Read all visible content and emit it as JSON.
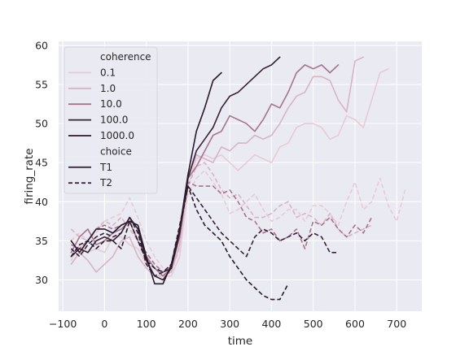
{
  "chart_data": {
    "type": "line",
    "xlabel": "time",
    "ylabel": "firing_rate",
    "xlim": [
      -110,
      760
    ],
    "ylim": [
      26,
      60.5
    ],
    "xticks": [
      -100,
      0,
      100,
      200,
      300,
      400,
      500,
      600,
      700
    ],
    "yticks": [
      30,
      35,
      40,
      45,
      50,
      55,
      60
    ],
    "xtick_labels": [
      "−100",
      "0",
      "100",
      "200",
      "300",
      "400",
      "500",
      "600",
      "700"
    ],
    "ytick_labels": [
      "30",
      "35",
      "40",
      "45",
      "50",
      "55",
      "60"
    ],
    "grid": true,
    "legend": {
      "placement": "top-left",
      "hue_title": "coherence",
      "hue_entries": [
        {
          "label": "0.1",
          "color": "#e6cbd6"
        },
        {
          "label": "1.0",
          "color": "#d8b4c5"
        },
        {
          "label": "10.0",
          "color": "#a7738e"
        },
        {
          "label": "100.0",
          "color": "#382036"
        },
        {
          "label": "1000.0",
          "color": "#2a1a2c"
        }
      ],
      "style_title": "choice",
      "style_entries": [
        {
          "label": "T1",
          "dash": "solid"
        },
        {
          "label": "T2",
          "dash": "dashed"
        }
      ]
    },
    "colors": {
      "background": "#eaeaf2",
      "grid": "#ffffff",
      "text": "#262626"
    },
    "series": [
      {
        "coherence": "0.1",
        "choice": "T1",
        "color": "#e6cbd6",
        "dash": "solid",
        "x": [
          -80,
          -60,
          -40,
          -20,
          0,
          20,
          40,
          60,
          80,
          100,
          120,
          140,
          160,
          180,
          200,
          220,
          240,
          260,
          280,
          300,
          320,
          340,
          360,
          380,
          400,
          420,
          440,
          460,
          480,
          500,
          520,
          540,
          560,
          580,
          600,
          620,
          640,
          660,
          680
        ],
        "y": [
          32.5,
          34.5,
          33.5,
          34,
          33.5,
          35.5,
          35.5,
          34.5,
          34,
          32,
          31.5,
          30.5,
          30.5,
          33,
          42,
          45.5,
          46,
          45.5,
          46,
          45,
          44,
          45,
          46,
          45.5,
          45,
          47,
          47.5,
          49.5,
          50,
          50,
          49.5,
          48,
          48.5,
          51,
          50.5,
          49.5,
          53,
          56.5,
          57
        ]
      },
      {
        "coherence": "0.1",
        "choice": "T2",
        "color": "#e6cbd6",
        "dash": "dashed",
        "x": [
          -80,
          -60,
          -40,
          -20,
          0,
          20,
          40,
          60,
          80,
          100,
          120,
          140,
          160,
          180,
          200,
          220,
          240,
          260,
          280,
          300,
          320,
          340,
          360,
          380,
          400,
          420,
          440,
          460,
          480,
          500,
          520,
          540,
          560,
          580,
          600,
          620,
          640,
          660,
          680,
          700,
          720
        ],
        "y": [
          35,
          36,
          35,
          36,
          37.5,
          38,
          38.5,
          40.5,
          38,
          35,
          33,
          31.5,
          31,
          34,
          41,
          43,
          44,
          42.5,
          41,
          38.5,
          39,
          40,
          41,
          39,
          37.5,
          38,
          39,
          39,
          37.5,
          39.5,
          39.5,
          38.5,
          37,
          40,
          42.5,
          39,
          40,
          43,
          39.5,
          37.5,
          41.5
        ]
      },
      {
        "coherence": "1.0",
        "choice": "T1",
        "color": "#d8b4c5",
        "dash": "solid",
        "x": [
          -80,
          -60,
          -40,
          -20,
          0,
          20,
          40,
          60,
          80,
          100,
          120,
          140,
          160,
          180,
          200,
          220,
          240,
          260,
          280,
          300,
          320,
          340,
          360,
          380,
          400,
          420,
          440,
          460,
          480,
          500,
          520,
          540,
          560,
          580,
          600,
          620
        ],
        "y": [
          32,
          33.5,
          32.5,
          31,
          32,
          33,
          35,
          35.5,
          33,
          31.5,
          30.5,
          30.5,
          31,
          34.5,
          43,
          46,
          45.5,
          45,
          47,
          46.5,
          47.5,
          47.5,
          48.5,
          48,
          48.5,
          50,
          52,
          53.5,
          54,
          56,
          56,
          55.5,
          53,
          51.5,
          58,
          58.5
        ]
      },
      {
        "coherence": "1.0",
        "choice": "T2",
        "color": "#d8b4c5",
        "dash": "dashed",
        "x": [
          -80,
          -60,
          -40,
          -20,
          0,
          20,
          40,
          60,
          80,
          100,
          120,
          140,
          160,
          180,
          200,
          220,
          240,
          260,
          280,
          300,
          320,
          340,
          360,
          380,
          400,
          420,
          440,
          460,
          480,
          500,
          520,
          540,
          560,
          580,
          600,
          620,
          640
        ],
        "y": [
          36.5,
          35.5,
          35,
          36.5,
          37.5,
          37,
          38,
          36.5,
          35,
          33,
          31.5,
          30.5,
          32,
          36.5,
          42,
          44.5,
          45,
          43.5,
          41.5,
          40.5,
          41,
          39.5,
          38,
          38,
          38.5,
          39.5,
          40,
          38,
          38.5,
          38,
          37,
          38.5,
          36.5,
          35.5,
          36,
          36.5,
          37
        ]
      },
      {
        "coherence": "10.0",
        "choice": "T1",
        "color": "#a7738e",
        "dash": "solid",
        "x": [
          -80,
          -60,
          -40,
          -20,
          0,
          20,
          40,
          60,
          80,
          100,
          120,
          140,
          160,
          180,
          200,
          220,
          240,
          260,
          280,
          300,
          320,
          340,
          360,
          380,
          400,
          420,
          440,
          460,
          480,
          500,
          520,
          540,
          560
        ],
        "y": [
          33.5,
          35.5,
          36.5,
          34.5,
          35,
          36,
          36.5,
          37.5,
          35,
          33,
          31.5,
          30.5,
          31.5,
          35.5,
          43,
          44.5,
          46.5,
          48.5,
          49,
          51,
          50.5,
          50,
          49,
          50.5,
          52.5,
          52,
          54,
          56.5,
          57.5,
          57,
          57.5,
          56.5,
          57.5
        ]
      },
      {
        "coherence": "10.0",
        "choice": "T2",
        "color": "#a7738e",
        "dash": "dashed",
        "x": [
          -80,
          -60,
          -40,
          -20,
          0,
          20,
          40,
          60,
          80,
          100,
          120,
          140,
          160,
          180,
          200,
          220,
          240,
          260,
          280,
          300,
          320,
          340,
          360,
          380,
          400,
          420,
          440,
          460,
          480,
          500,
          520,
          540,
          560,
          580,
          600,
          620,
          640
        ],
        "y": [
          34.5,
          34,
          35,
          36.5,
          37,
          36.5,
          37,
          37.5,
          35,
          33.5,
          32,
          31,
          31.5,
          36,
          42.5,
          42,
          42,
          42,
          41,
          41.5,
          40,
          38,
          37.5,
          36,
          36.5,
          35,
          35.5,
          36.5,
          34,
          37.5,
          37,
          38,
          36.5,
          35.5,
          37,
          36,
          38
        ]
      },
      {
        "coherence": "100.0",
        "choice": "T1",
        "color": "#382036",
        "dash": "solid",
        "x": [
          -80,
          -60,
          -40,
          -20,
          0,
          20,
          40,
          60,
          80,
          100,
          120,
          140,
          160,
          180,
          200,
          220,
          240,
          260,
          280,
          300,
          320,
          340,
          360,
          380,
          400,
          420
        ],
        "y": [
          33,
          34,
          33.5,
          35,
          35.5,
          35,
          36,
          38,
          36.5,
          32.5,
          30.5,
          30,
          31.5,
          36,
          43,
          46.5,
          48,
          49.5,
          52,
          53.5,
          54,
          55,
          56,
          57,
          57.5,
          58.5
        ]
      },
      {
        "coherence": "100.0",
        "choice": "T2",
        "color": "#382036",
        "dash": "dashed",
        "x": [
          -80,
          -60,
          -40,
          -20,
          0,
          20,
          40,
          60,
          80,
          100,
          120,
          140,
          160,
          180,
          200,
          220,
          240,
          260,
          280,
          300,
          320,
          340,
          360,
          380,
          400,
          420,
          440,
          460,
          480,
          500,
          520,
          540,
          560
        ],
        "y": [
          34,
          33,
          34.5,
          35.5,
          36,
          35.5,
          36,
          38,
          36,
          32,
          30.5,
          31,
          32,
          37,
          42,
          40.5,
          39,
          37.5,
          36,
          35,
          34,
          33,
          35.5,
          36.5,
          36,
          35,
          35.5,
          36,
          35,
          36,
          35.5,
          33.5,
          33.5
        ]
      },
      {
        "coherence": "1000.0",
        "choice": "T1",
        "color": "#2a1a2c",
        "dash": "solid",
        "x": [
          -80,
          -60,
          -40,
          -20,
          0,
          20,
          40,
          60,
          80,
          100,
          120,
          140,
          160,
          180,
          200,
          220,
          240,
          260,
          280
        ],
        "y": [
          35,
          33.5,
          35,
          36.5,
          36.5,
          36,
          37,
          37.5,
          37,
          33,
          29.5,
          29.5,
          32,
          36.5,
          43.5,
          49,
          52,
          55.5,
          56.5
        ]
      },
      {
        "coherence": "1000.0",
        "choice": "T2",
        "color": "#2a1a2c",
        "dash": "dashed",
        "x": [
          -80,
          -60,
          -40,
          -20,
          0,
          20,
          40,
          60,
          80,
          100,
          120,
          140,
          160,
          180,
          200,
          220,
          240,
          260,
          280,
          300,
          320,
          340,
          360,
          380,
          400,
          420,
          440
        ],
        "y": [
          33,
          34.5,
          35,
          34,
          35,
          35,
          34,
          37.5,
          35,
          32.5,
          31.5,
          31,
          31.5,
          36.5,
          42,
          39,
          37,
          36,
          35,
          33,
          31.5,
          30,
          29,
          28,
          27.5,
          27.5,
          29.5
        ]
      }
    ]
  }
}
